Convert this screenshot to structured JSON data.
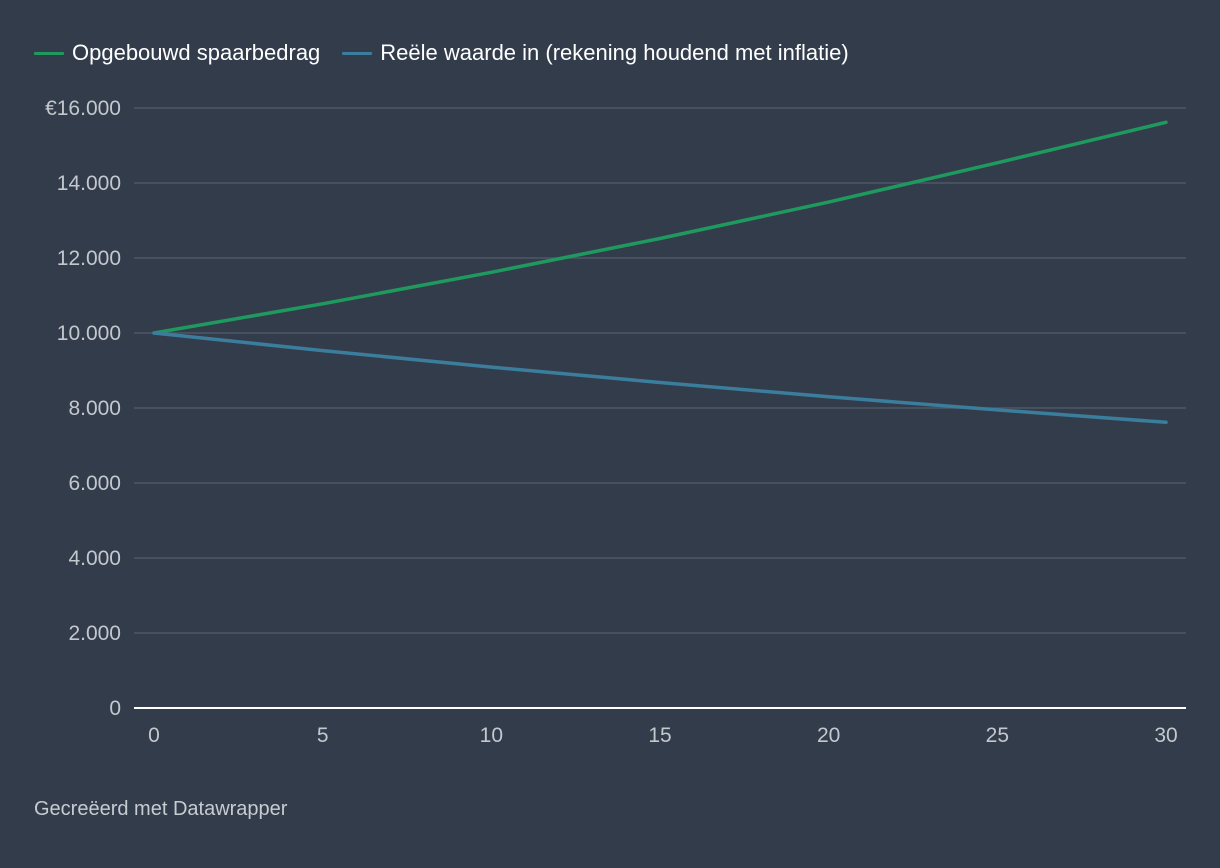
{
  "colors": {
    "background": "#333c4b",
    "grid": "#4c5666",
    "baseline": "#ffffff",
    "tick_text": "#c3c7ce",
    "series_green": "#1f9a5f",
    "series_blue": "#3b7d9c"
  },
  "footer": {
    "credit": "Gecreëerd met Datawrapper"
  },
  "chart_data": {
    "type": "line",
    "title": "",
    "xlabel": "",
    "ylabel": "",
    "xlim": [
      0,
      30
    ],
    "ylim": [
      0,
      16000
    ],
    "grid": true,
    "legend_position": "top-left",
    "x_ticks": [
      0,
      5,
      10,
      15,
      20,
      25,
      30
    ],
    "x_tick_labels": [
      "0",
      "5",
      "10",
      "15",
      "20",
      "25",
      "30"
    ],
    "y_ticks": [
      0,
      2000,
      4000,
      6000,
      8000,
      10000,
      12000,
      14000,
      16000
    ],
    "y_tick_labels": [
      "0",
      "2.000",
      "4.000",
      "6.000",
      "8.000",
      "10.000",
      "12.000",
      "14.000",
      "€16.000"
    ],
    "x": [
      0,
      5,
      10,
      15,
      20,
      25,
      30
    ],
    "series": [
      {
        "name": "Opgebouwd spaarbedrag",
        "color": "#1f9a5f",
        "values": [
          10000,
          10780,
          11620,
          12520,
          13490,
          14540,
          15620
        ]
      },
      {
        "name": "Reële waarde in (rekening houdend met inflatie)",
        "color": "#3b7d9c",
        "values": [
          10000,
          9530,
          9090,
          8680,
          8300,
          7950,
          7620
        ]
      }
    ]
  }
}
